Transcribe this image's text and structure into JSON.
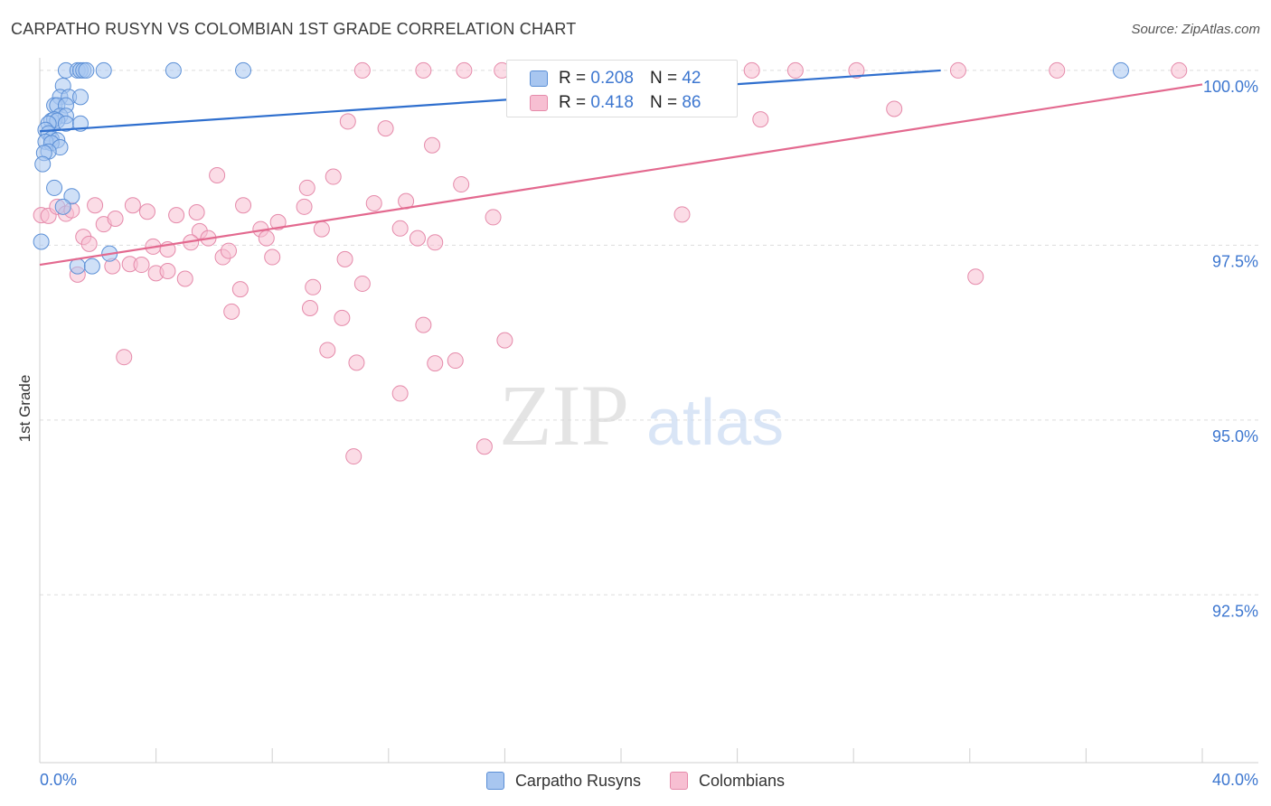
{
  "title": "CARPATHO RUSYN VS COLOMBIAN 1ST GRADE CORRELATION CHART",
  "source": "Source: ZipAtlas.com",
  "watermark": {
    "zip": "ZIP",
    "atlas": "atlas"
  },
  "legend": {
    "r_label": "R =",
    "n_label": "N =",
    "series": [
      {
        "name": "Carpatho Rusyns",
        "r": "0.208",
        "n": "42"
      },
      {
        "name": "Colombians",
        "r": "0.418",
        "n": "86"
      }
    ]
  },
  "colors": {
    "blue_fill": "#a8c6f0",
    "blue_stroke": "#5b8fd6",
    "blue_line": "#2f6fce",
    "pink_fill": "#f7bfd2",
    "pink_stroke": "#e58aaa",
    "pink_line": "#e3698f",
    "axis_label": "#3d77d0",
    "grid": "#dddddd"
  },
  "chart_data": {
    "type": "scatter",
    "title": "CARPATHO RUSYN VS COLOMBIAN 1ST GRADE CORRELATION CHART",
    "xlabel": "",
    "ylabel": "1st Grade",
    "xlim": [
      0,
      40
    ],
    "ylim": [
      90.1,
      100.18
    ],
    "x_tick_labels": [
      {
        "value": 0,
        "label": "0.0%"
      },
      {
        "value": 40,
        "label": "40.0%"
      }
    ],
    "y_tick_labels": [
      {
        "value": 100,
        "label": "100.0%"
      },
      {
        "value": 97.5,
        "label": "97.5%"
      },
      {
        "value": 95,
        "label": "95.0%"
      },
      {
        "value": 92.5,
        "label": "92.5%"
      }
    ],
    "series": [
      {
        "name": "Carpatho Rusyns",
        "trend": {
          "x": [
            0,
            31.0
          ],
          "y": [
            99.13,
            100.0
          ]
        },
        "points": [
          [
            0.9,
            100.0
          ],
          [
            1.3,
            100.0
          ],
          [
            1.4,
            100.0
          ],
          [
            1.5,
            100.0
          ],
          [
            1.6,
            100.0
          ],
          [
            2.2,
            100.0
          ],
          [
            4.6,
            100.0
          ],
          [
            7.0,
            100.0
          ],
          [
            37.2,
            100.0
          ],
          [
            0.8,
            99.78
          ],
          [
            0.7,
            99.62
          ],
          [
            1.0,
            99.62
          ],
          [
            1.4,
            99.62
          ],
          [
            0.5,
            99.5
          ],
          [
            0.6,
            99.5
          ],
          [
            0.9,
            99.5
          ],
          [
            0.7,
            99.35
          ],
          [
            0.9,
            99.35
          ],
          [
            0.4,
            99.28
          ],
          [
            0.5,
            99.3
          ],
          [
            0.6,
            99.28
          ],
          [
            0.3,
            99.24
          ],
          [
            0.9,
            99.24
          ],
          [
            1.4,
            99.24
          ],
          [
            0.2,
            99.15
          ],
          [
            0.3,
            99.1
          ],
          [
            0.4,
            99.02
          ],
          [
            0.6,
            99.0
          ],
          [
            0.2,
            98.98
          ],
          [
            0.4,
            98.96
          ],
          [
            0.7,
            98.9
          ],
          [
            0.3,
            98.84
          ],
          [
            0.15,
            98.82
          ],
          [
            0.1,
            98.66
          ],
          [
            0.5,
            98.32
          ],
          [
            1.1,
            98.2
          ],
          [
            0.8,
            98.05
          ],
          [
            0.05,
            97.55
          ],
          [
            2.4,
            97.38
          ],
          [
            1.3,
            97.2
          ],
          [
            1.8,
            97.2
          ]
        ]
      },
      {
        "name": "Colombians",
        "trend": {
          "x": [
            0,
            40
          ],
          "y": [
            97.22,
            99.8
          ]
        },
        "points": [
          [
            11.1,
            100.0
          ],
          [
            13.2,
            100.0
          ],
          [
            14.6,
            100.0
          ],
          [
            15.9,
            100.0
          ],
          [
            18.5,
            100.0
          ],
          [
            19.8,
            100.0
          ],
          [
            24.5,
            100.0
          ],
          [
            26.0,
            100.0
          ],
          [
            28.1,
            100.0
          ],
          [
            31.6,
            100.0
          ],
          [
            35.0,
            100.0
          ],
          [
            39.2,
            100.0
          ],
          [
            29.4,
            99.45
          ],
          [
            10.6,
            99.27
          ],
          [
            11.9,
            99.17
          ],
          [
            24.8,
            99.3
          ],
          [
            13.5,
            98.93
          ],
          [
            6.1,
            98.5
          ],
          [
            9.2,
            98.32
          ],
          [
            10.1,
            98.48
          ],
          [
            11.5,
            98.1
          ],
          [
            12.6,
            98.13
          ],
          [
            14.5,
            98.37
          ],
          [
            15.6,
            97.9
          ],
          [
            22.1,
            97.94
          ],
          [
            0.05,
            97.93
          ],
          [
            0.3,
            97.92
          ],
          [
            0.6,
            98.05
          ],
          [
            0.9,
            97.95
          ],
          [
            1.1,
            98.0
          ],
          [
            1.9,
            98.07
          ],
          [
            3.2,
            98.07
          ],
          [
            3.7,
            97.98
          ],
          [
            4.7,
            97.93
          ],
          [
            5.4,
            97.97
          ],
          [
            5.5,
            97.7
          ],
          [
            7.0,
            98.07
          ],
          [
            7.6,
            97.73
          ],
          [
            8.2,
            97.83
          ],
          [
            9.1,
            98.05
          ],
          [
            9.7,
            97.73
          ],
          [
            12.4,
            97.74
          ],
          [
            13.0,
            97.6
          ],
          [
            13.6,
            97.54
          ],
          [
            1.5,
            97.62
          ],
          [
            1.7,
            97.52
          ],
          [
            2.2,
            97.8
          ],
          [
            2.6,
            97.88
          ],
          [
            3.9,
            97.48
          ],
          [
            4.4,
            97.44
          ],
          [
            5.2,
            97.54
          ],
          [
            5.8,
            97.6
          ],
          [
            6.3,
            97.33
          ],
          [
            6.5,
            97.42
          ],
          [
            7.8,
            97.6
          ],
          [
            8.0,
            97.33
          ],
          [
            10.5,
            97.3
          ],
          [
            1.3,
            97.08
          ],
          [
            2.5,
            97.2
          ],
          [
            3.1,
            97.23
          ],
          [
            3.5,
            97.22
          ],
          [
            4.0,
            97.1
          ],
          [
            4.4,
            97.13
          ],
          [
            5.0,
            97.02
          ],
          [
            6.6,
            96.55
          ],
          [
            6.9,
            96.87
          ],
          [
            9.4,
            96.9
          ],
          [
            9.3,
            96.6
          ],
          [
            11.1,
            96.95
          ],
          [
            10.4,
            96.46
          ],
          [
            13.2,
            96.36
          ],
          [
            16.0,
            96.14
          ],
          [
            32.2,
            97.05
          ],
          [
            2.9,
            95.9
          ],
          [
            9.9,
            96.0
          ],
          [
            10.9,
            95.82
          ],
          [
            13.6,
            95.81
          ],
          [
            12.4,
            95.38
          ],
          [
            10.8,
            94.48
          ],
          [
            15.3,
            94.62
          ],
          [
            14.3,
            95.85
          ]
        ]
      }
    ]
  }
}
